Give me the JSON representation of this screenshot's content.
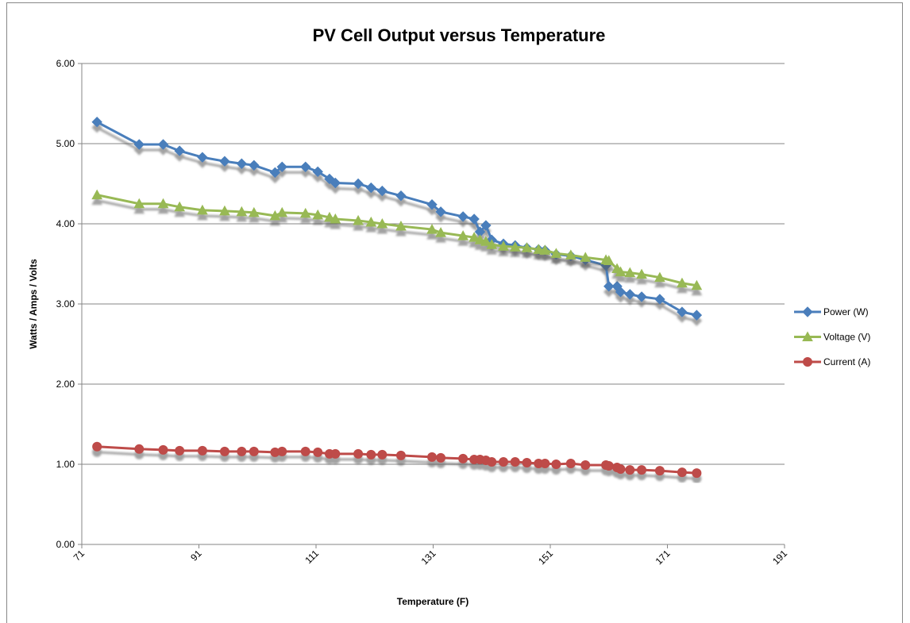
{
  "chart_data": {
    "type": "scatter",
    "title": "PV Cell Output versus Temperature",
    "x_label": "Temperature  (F)",
    "y_label": "Watts / Amps / Volts",
    "x": [
      73.6,
      80.8,
      84.9,
      87.7,
      91.6,
      95.4,
      98.3,
      100.4,
      104,
      105.2,
      109.2,
      111.3,
      113.3,
      114.3,
      118.2,
      120.4,
      122.3,
      125.5,
      130.8,
      132.3,
      136.1,
      138,
      139,
      140,
      141,
      143,
      145,
      147,
      149,
      150.1,
      152,
      154.5,
      157,
      160.5,
      161,
      162.4,
      163,
      164.6,
      166.6,
      169.7,
      173.5,
      176
    ],
    "series": [
      {
        "name": "Power (W)",
        "color": "#4a7ebb",
        "marker": "diamond",
        "values": [
          5.27,
          4.99,
          4.99,
          4.91,
          4.83,
          4.78,
          4.75,
          4.73,
          4.64,
          4.71,
          4.71,
          4.65,
          4.56,
          4.51,
          4.5,
          4.45,
          4.41,
          4.35,
          4.24,
          4.15,
          4.09,
          4.06,
          3.9,
          3.98,
          3.8,
          3.75,
          3.73,
          3.7,
          3.68,
          3.67,
          3.62,
          3.6,
          3.55,
          3.48,
          3.22,
          3.22,
          3.15,
          3.12,
          3.09,
          3.06,
          2.9,
          2.86
        ]
      },
      {
        "name": "Voltage (V)",
        "color": "#98b954",
        "marker": "triangle",
        "values": [
          4.36,
          4.25,
          4.25,
          4.21,
          4.17,
          4.16,
          4.15,
          4.14,
          4.1,
          4.14,
          4.13,
          4.11,
          4.08,
          4.06,
          4.04,
          4.02,
          4.0,
          3.97,
          3.93,
          3.89,
          3.85,
          3.83,
          3.8,
          3.78,
          3.74,
          3.72,
          3.71,
          3.7,
          3.68,
          3.67,
          3.63,
          3.61,
          3.58,
          3.55,
          3.54,
          3.44,
          3.4,
          3.39,
          3.37,
          3.33,
          3.26,
          3.23
        ]
      },
      {
        "name": "Current (A)",
        "color": "#be4b48",
        "marker": "circle",
        "values": [
          1.22,
          1.19,
          1.18,
          1.17,
          1.17,
          1.16,
          1.16,
          1.16,
          1.15,
          1.16,
          1.16,
          1.15,
          1.13,
          1.13,
          1.13,
          1.12,
          1.12,
          1.11,
          1.09,
          1.08,
          1.07,
          1.06,
          1.06,
          1.05,
          1.03,
          1.03,
          1.03,
          1.02,
          1.01,
          1.01,
          1.0,
          1.01,
          0.99,
          0.99,
          0.98,
          0.96,
          0.94,
          0.93,
          0.93,
          0.92,
          0.9,
          0.89
        ]
      }
    ],
    "xlim": [
      71,
      191
    ],
    "xticks": [
      71,
      91,
      111,
      131,
      151,
      171,
      191
    ],
    "ylim": [
      0,
      6
    ],
    "yticks": [
      {
        "value": 0,
        "label": "0.00"
      },
      {
        "value": 1,
        "label": "1.00"
      },
      {
        "value": 2,
        "label": "2.00"
      },
      {
        "value": 3,
        "label": "3.00"
      },
      {
        "value": 4,
        "label": "4.00"
      },
      {
        "value": 5,
        "label": "5.00"
      },
      {
        "value": 6,
        "label": "6.00"
      }
    ],
    "grid": true,
    "legend": "right"
  }
}
